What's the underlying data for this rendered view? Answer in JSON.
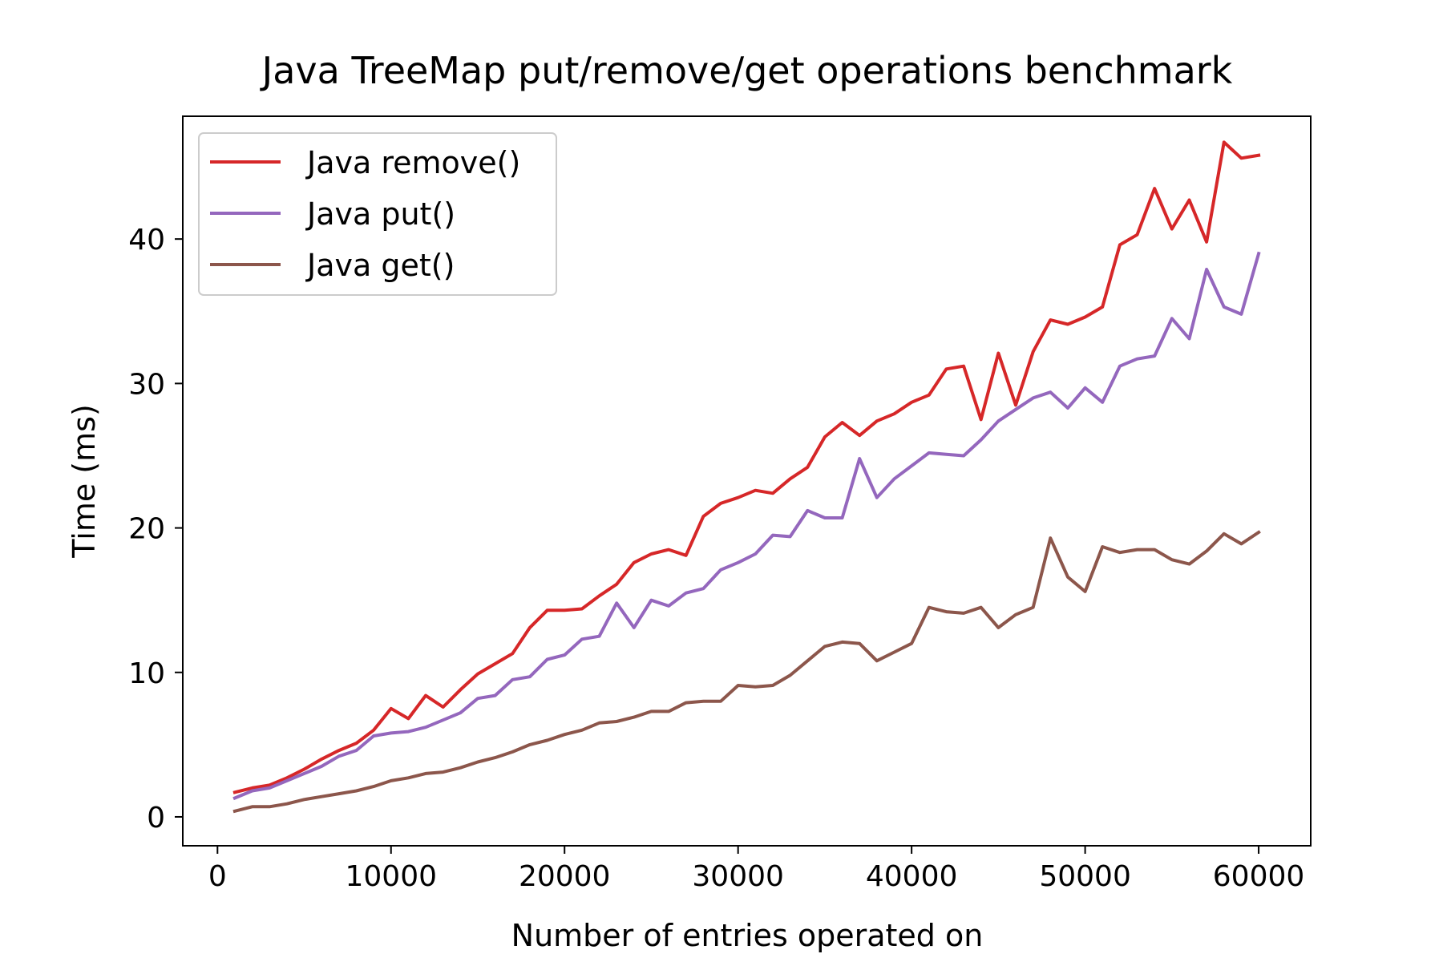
{
  "chart_data": {
    "type": "line",
    "title": "Java TreeMap put/remove/get operations benchmark",
    "xlabel": "Number of entries operated on",
    "ylabel": "Time (ms)",
    "xlim": [
      -2000,
      63000
    ],
    "ylim": [
      -2,
      48.5
    ],
    "xticks": [
      0,
      10000,
      20000,
      30000,
      40000,
      50000,
      60000
    ],
    "xtick_labels": [
      "0",
      "10000",
      "20000",
      "30000",
      "40000",
      "50000",
      "60000"
    ],
    "yticks": [
      0,
      10,
      20,
      30,
      40
    ],
    "ytick_labels": [
      "0",
      "10",
      "20",
      "30",
      "40"
    ],
    "grid": false,
    "legend_position": "upper-left",
    "x": [
      1000,
      2000,
      3000,
      4000,
      5000,
      6000,
      7000,
      8000,
      9000,
      10000,
      11000,
      12000,
      13000,
      14000,
      15000,
      16000,
      17000,
      18000,
      19000,
      20000,
      21000,
      22000,
      23000,
      24000,
      25000,
      26000,
      27000,
      28000,
      29000,
      30000,
      31000,
      32000,
      33000,
      34000,
      35000,
      36000,
      37000,
      38000,
      39000,
      40000,
      41000,
      42000,
      43000,
      44000,
      45000,
      46000,
      47000,
      48000,
      49000,
      50000,
      51000,
      52000,
      53000,
      54000,
      55000,
      56000,
      57000,
      58000,
      59000,
      60000
    ],
    "series": [
      {
        "name": "Java remove()",
        "color": "#d62728",
        "values": [
          1.7,
          2.0,
          2.2,
          2.7,
          3.3,
          4.0,
          4.6,
          5.1,
          6.0,
          7.5,
          6.8,
          8.4,
          7.6,
          8.8,
          9.9,
          10.6,
          11.3,
          13.1,
          14.3,
          14.3,
          14.4,
          15.3,
          16.1,
          17.6,
          18.2,
          18.5,
          18.1,
          20.8,
          21.7,
          22.1,
          22.6,
          22.4,
          23.4,
          24.2,
          26.3,
          27.3,
          26.4,
          27.4,
          27.9,
          28.7,
          29.2,
          31.0,
          31.2,
          27.5,
          32.1,
          28.5,
          32.2,
          34.4,
          34.1,
          34.6,
          35.3,
          39.6,
          40.3,
          43.5,
          40.7,
          42.7,
          39.8,
          46.7,
          45.6,
          45.8
        ]
      },
      {
        "name": "Java put()",
        "color": "#9467bd",
        "values": [
          1.3,
          1.8,
          2.0,
          2.5,
          3.0,
          3.5,
          4.2,
          4.6,
          5.6,
          5.8,
          5.9,
          6.2,
          6.7,
          7.2,
          8.2,
          8.4,
          9.5,
          9.7,
          10.9,
          11.2,
          12.3,
          12.5,
          14.8,
          13.1,
          15.0,
          14.6,
          15.5,
          15.8,
          17.1,
          17.6,
          18.2,
          19.5,
          19.4,
          21.2,
          20.7,
          20.7,
          24.8,
          22.1,
          23.4,
          24.3,
          25.2,
          25.1,
          25.0,
          26.1,
          27.4,
          28.2,
          29.0,
          29.4,
          28.3,
          29.7,
          28.7,
          31.2,
          31.7,
          31.9,
          34.5,
          33.1,
          37.9,
          35.3,
          34.8,
          39.0
        ]
      },
      {
        "name": "Java get()",
        "color": "#8c564b",
        "values": [
          0.4,
          0.7,
          0.7,
          0.9,
          1.2,
          1.4,
          1.6,
          1.8,
          2.1,
          2.5,
          2.7,
          3.0,
          3.1,
          3.4,
          3.8,
          4.1,
          4.5,
          5.0,
          5.3,
          5.7,
          6.0,
          6.5,
          6.6,
          6.9,
          7.3,
          7.3,
          7.9,
          8.0,
          8.0,
          9.1,
          9.0,
          9.1,
          9.8,
          10.8,
          11.8,
          12.1,
          12.0,
          10.8,
          11.4,
          12.0,
          14.5,
          14.2,
          14.1,
          14.5,
          13.1,
          14.0,
          14.5,
          19.3,
          16.6,
          15.6,
          18.7,
          18.3,
          18.5,
          18.5,
          17.8,
          17.5,
          18.4,
          19.6,
          18.9,
          19.7
        ]
      }
    ]
  }
}
